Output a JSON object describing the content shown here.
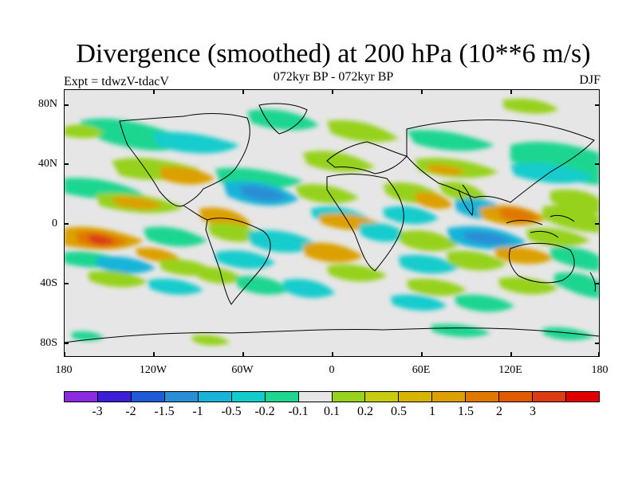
{
  "header": {
    "title": "Divergence (smoothed) at 200 hPa (10**6 m/s)",
    "subtitle": "072kyr BP - 072kyr BP",
    "expt": "Expt = tdwzV-tdacV",
    "season": "DJF"
  },
  "axes": {
    "lat_labels": [
      "80N",
      "40N",
      "0",
      "40S",
      "80S"
    ],
    "lon_labels": [
      "180",
      "120W",
      "60W",
      "0",
      "60E",
      "120E",
      "180"
    ]
  },
  "colorbar": {
    "colors": [
      "#8a2be2",
      "#3a1fd6",
      "#1f5bd6",
      "#2a8ed6",
      "#18b4d8",
      "#12cccc",
      "#1ed690",
      "#e6e6e6",
      "#96d21e",
      "#c8cc10",
      "#d6b400",
      "#dca000",
      "#e07800",
      "#e05a00",
      "#dc3c14",
      "#e00000"
    ],
    "labels": [
      "-3",
      "-2",
      "-1.5",
      "-1",
      "-0.5",
      "-0.2",
      "-0.1",
      "0.1",
      "0.2",
      "0.5",
      "1",
      "1.5",
      "2",
      "3"
    ]
  },
  "palette": {
    "ocean_background": "#e6e6e6",
    "neg_weak": "#1ed690",
    "neg_mod": "#12cccc",
    "neg_strong": "#18b4d8",
    "neg_stronger": "#2a8ed6",
    "pos_weak": "#96d21e",
    "pos_mod": "#c8cc10",
    "pos_strong": "#dca000",
    "pos_stronger": "#e07800",
    "pos_max": "#dc3c14",
    "coast": "#000000"
  }
}
